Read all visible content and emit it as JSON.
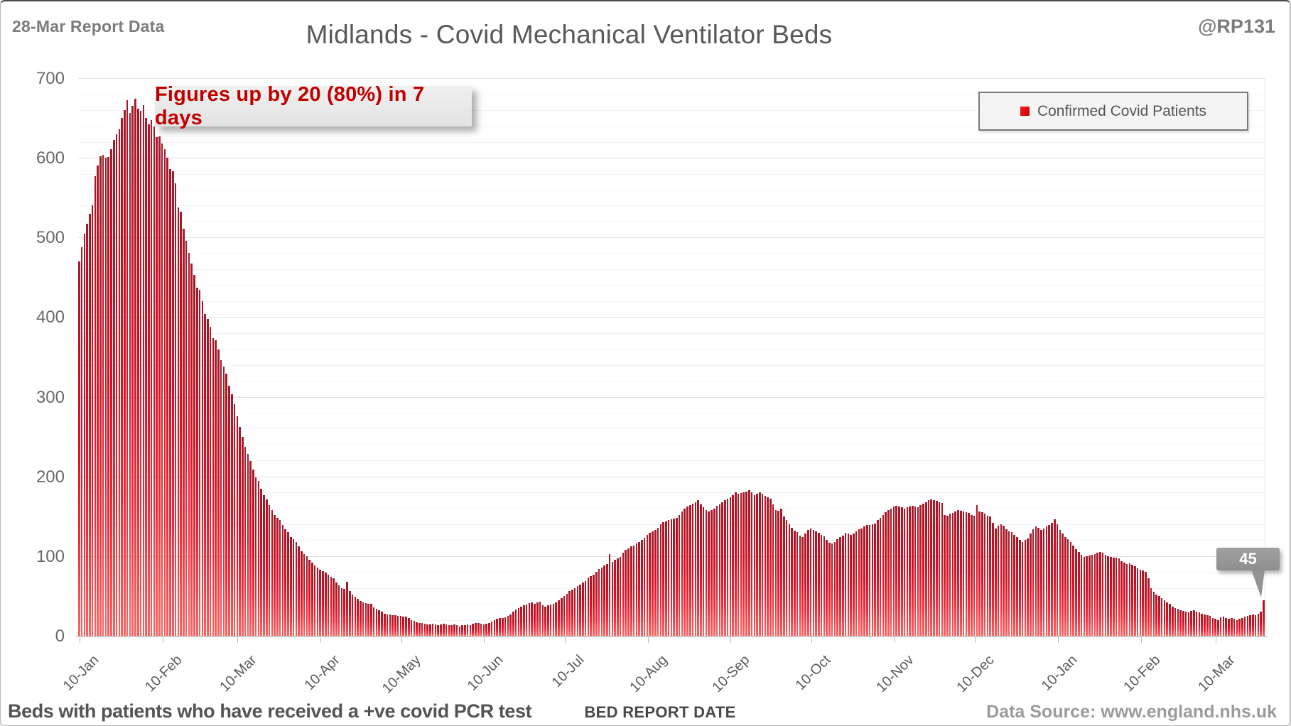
{
  "header": {
    "report_label": "28-Mar Report Data",
    "title": "Midlands - Covid Mechanical Ventilator Beds",
    "handle": "@RP131"
  },
  "annotation": {
    "text": "Figures up by 20 (80%) in 7 days"
  },
  "legend": {
    "label": "Confirmed Covid Patients",
    "marker_color": "#e31b23"
  },
  "callout": {
    "value": "45"
  },
  "footer": {
    "left": "Beds with patients who have received a +ve covid PCR test",
    "center": "BED REPORT DATE",
    "right": "Data Source: www.england.nhs.uk"
  },
  "colors": {
    "bar_top": "#a31b2b",
    "bar_bottom": "#fb6464",
    "annotation_text": "#c00000",
    "title_gray": "#595959",
    "major_gridline": "#e2e2e2",
    "minor_gridline": "#f3f3f3"
  },
  "chart_data": {
    "type": "bar",
    "title": "Midlands - Covid Mechanical Ventilator Beds",
    "xlabel": "BED REPORT DATE",
    "ylabel": "",
    "ylim": [
      0,
      700
    ],
    "y_ticks": [
      0,
      100,
      200,
      300,
      400,
      500,
      600,
      700
    ],
    "gridlines": {
      "major_step": 100,
      "minor_step": 20
    },
    "legend_position": "top-right",
    "start_label": "10-Jan",
    "end_label": "28-Mar",
    "n_days": 443,
    "x_tick_labels": [
      "10-Jan",
      "10-Feb",
      "10-Mar",
      "10-Apr",
      "10-May",
      "10-Jun",
      "10-Jul",
      "10-Aug",
      "10-Sep",
      "10-Oct",
      "10-Nov",
      "10-Dec",
      "10-Jan",
      "10-Feb",
      "10-Mar"
    ],
    "x_tick_day_index": [
      0,
      31,
      59,
      90,
      120,
      151,
      181,
      212,
      243,
      273,
      304,
      334,
      365,
      396,
      424
    ],
    "last_point_label": 45,
    "series": [
      {
        "name": "Confirmed Covid Patients",
        "values": [
          470,
          488,
          505,
          517,
          530,
          540,
          577,
          590,
          602,
          604,
          600,
          601,
          611,
          622,
          630,
          636,
          650,
          660,
          672,
          656,
          665,
          674,
          662,
          659,
          666,
          650,
          642,
          647,
          639,
          626,
          627,
          618,
          611,
          600,
          586,
          583,
          568,
          538,
          532,
          511,
          496,
          481,
          467,
          453,
          437,
          434,
          420,
          404,
          398,
          388,
          374,
          371,
          359,
          346,
          338,
          329,
          314,
          303,
          291,
          276,
          262,
          250,
          237,
          228,
          219,
          209,
          199,
          194,
          185,
          177,
          171,
          164,
          158,
          152,
          148,
          145,
          139,
          134,
          130,
          124,
          121,
          118,
          112,
          106,
          103,
          100,
          95,
          92,
          88,
          86,
          83,
          81,
          79,
          77,
          74,
          72,
          67,
          63,
          60,
          59,
          68,
          56,
          52,
          49,
          46,
          44,
          42,
          41,
          40,
          40,
          36,
          34,
          32,
          30,
          28,
          27,
          27,
          26,
          26,
          25,
          25,
          24,
          24,
          22,
          20,
          19,
          17,
          16,
          16,
          15,
          14,
          14,
          15,
          14,
          13,
          14,
          15,
          14,
          13,
          13,
          14,
          13,
          12,
          13,
          13,
          14,
          13,
          15,
          16,
          16,
          15,
          14,
          15,
          16,
          18,
          20,
          21,
          22,
          22,
          23,
          25,
          27,
          30,
          33,
          35,
          37,
          38,
          39,
          41,
          42,
          40,
          42,
          43,
          38,
          37,
          38,
          39,
          40,
          42,
          45,
          47,
          50,
          53,
          56,
          58,
          60,
          62,
          64,
          67,
          69,
          73,
          75,
          77,
          80,
          84,
          86,
          88,
          90,
          103,
          93,
          95,
          97,
          99,
          104,
          108,
          110,
          112,
          113,
          116,
          118,
          120,
          123,
          127,
          129,
          131,
          133,
          136,
          140,
          143,
          144,
          145,
          146,
          147,
          148,
          152,
          156,
          160,
          162,
          164,
          166,
          168,
          170,
          165,
          161,
          158,
          156,
          158,
          160,
          163,
          165,
          168,
          170,
          172,
          174,
          177,
          180,
          178,
          179,
          180,
          181,
          183,
          180,
          177,
          178,
          180,
          178,
          176,
          174,
          172,
          165,
          158,
          157,
          160,
          150,
          145,
          140,
          136,
          132,
          130,
          126,
          124,
          128,
          133,
          135,
          133,
          131,
          129,
          127,
          125,
          120,
          117,
          116,
          118,
          121,
          124,
          126,
          129,
          128,
          127,
          128,
          131,
          134,
          135,
          137,
          139,
          139,
          140,
          141,
          145,
          148,
          152,
          155,
          158,
          160,
          162,
          163,
          162,
          161,
          160,
          161,
          162,
          163,
          162,
          161,
          164,
          166,
          168,
          170,
          171,
          170,
          169,
          168,
          167,
          152,
          151,
          153,
          154,
          156,
          158,
          157,
          156,
          155,
          154,
          152,
          151,
          164,
          156,
          155,
          153,
          151,
          150,
          142,
          135,
          138,
          140,
          138,
          134,
          131,
          130,
          127,
          124,
          120,
          118,
          120,
          122,
          128,
          134,
          137,
          136,
          133,
          135,
          137,
          139,
          142,
          146,
          140,
          133,
          128,
          124,
          121,
          118,
          113,
          109,
          105,
          102,
          99,
          100,
          101,
          102,
          103,
          104,
          105,
          104,
          102,
          100,
          99,
          98,
          98,
          97,
          94,
          92,
          90,
          91,
          89,
          87,
          85,
          83,
          82,
          80,
          72,
          60,
          55,
          52,
          50,
          47,
          45,
          42,
          40,
          37,
          35,
          34,
          32,
          31,
          30,
          29,
          31,
          32,
          30,
          29,
          28,
          27,
          26,
          25,
          22,
          21,
          20,
          23,
          24,
          22,
          21,
          22,
          21,
          20,
          21,
          22,
          24,
          25,
          26,
          27,
          26,
          28,
          30,
          45
        ]
      }
    ]
  }
}
